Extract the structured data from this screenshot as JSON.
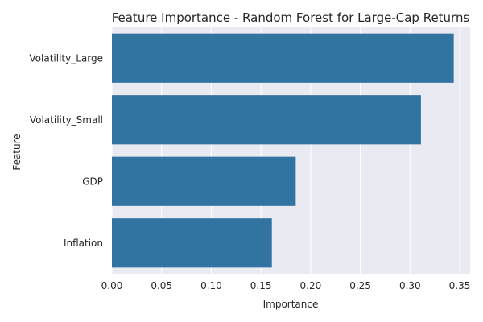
{
  "chart_data": {
    "type": "bar",
    "orientation": "horizontal",
    "title": "Feature Importance - Random Forest for Large-Cap Returns",
    "xlabel": "Importance",
    "ylabel": "Feature",
    "categories": [
      "Volatility_Large",
      "Volatility_Small",
      "GDP",
      "Inflation"
    ],
    "values": [
      0.344,
      0.311,
      0.185,
      0.161
    ],
    "xlim": [
      0,
      0.3605
    ],
    "xticks": [
      0.0,
      0.05,
      0.1,
      0.15,
      0.2,
      0.25,
      0.3,
      0.35
    ],
    "xtick_labels": [
      "0.00",
      "0.05",
      "0.10",
      "0.15",
      "0.20",
      "0.25",
      "0.30",
      "0.35"
    ],
    "grid": true,
    "colors": {
      "bar": "#3274a1",
      "plot_bg": "#eaeaf2",
      "grid": "#ffffff"
    }
  }
}
